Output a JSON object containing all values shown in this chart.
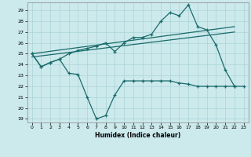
{
  "title": "",
  "xlabel": "Humidex (Indice chaleur)",
  "x_values": [
    0,
    1,
    2,
    3,
    4,
    5,
    6,
    7,
    8,
    9,
    10,
    11,
    12,
    13,
    14,
    15,
    16,
    17,
    18,
    19,
    20,
    21,
    22,
    23
  ],
  "y_lower": [
    25.0,
    23.8,
    24.2,
    24.5,
    23.2,
    23.1,
    21.0,
    19.0,
    19.3,
    21.2,
    22.5,
    22.5,
    22.5,
    22.5,
    22.5,
    22.5,
    22.3,
    22.2,
    22.0,
    22.0,
    22.0,
    22.0,
    22.0,
    22.0
  ],
  "y_upper": [
    25.0,
    23.8,
    24.2,
    24.5,
    25.0,
    25.3,
    25.5,
    25.7,
    26.0,
    25.2,
    26.0,
    26.5,
    26.5,
    26.8,
    28.0,
    28.8,
    28.5,
    29.5,
    27.5,
    27.2,
    25.8,
    23.5,
    22.0,
    null
  ],
  "trend1_x": [
    0,
    22
  ],
  "trend1_y": [
    25.0,
    27.5
  ],
  "trend2_x": [
    0,
    22
  ],
  "trend2_y": [
    24.7,
    27.0
  ],
  "bg_color": "#cce9ec",
  "grid_color": "#aad4d8",
  "line_color": "#1a6b6b",
  "ylim": [
    18.7,
    29.7
  ],
  "xlim": [
    -0.5,
    23.5
  ],
  "yticks": [
    19,
    20,
    21,
    22,
    23,
    24,
    25,
    26,
    27,
    28,
    29
  ],
  "xticks": [
    0,
    1,
    2,
    3,
    4,
    5,
    6,
    7,
    8,
    9,
    10,
    11,
    12,
    13,
    14,
    15,
    16,
    17,
    18,
    19,
    20,
    21,
    22,
    23
  ]
}
